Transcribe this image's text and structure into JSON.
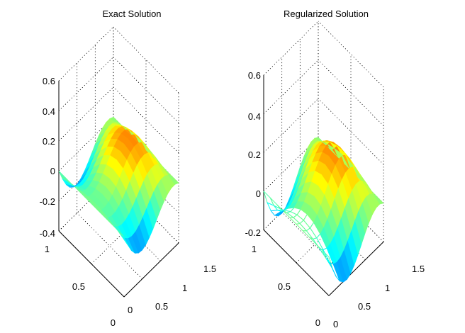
{
  "chart_data": [
    {
      "type": "surface",
      "title": "Exact Solution",
      "xlabel": "",
      "ylabel": "",
      "zlabel": "",
      "x_ticks": [
        "0",
        "0.5",
        "1",
        "1.5"
      ],
      "y_ticks": [
        "0",
        "0.5",
        "1"
      ],
      "z_ticks": [
        "0.6",
        "0.4",
        "0.2",
        "0",
        "-0.2",
        "-0.4"
      ],
      "xlim": [
        0,
        1.5
      ],
      "ylim": [
        0,
        1
      ],
      "zlim": [
        -0.4,
        0.6
      ],
      "colormap": "jet",
      "grid": true,
      "surface_function": "sin(pi*x/1.5)*(0.30*sin(pi*y) + 0.34*x - 0.41)",
      "grid_size": [
        16,
        11
      ]
    },
    {
      "type": "surface",
      "title": "Regularized Solution",
      "xlabel": "",
      "ylabel": "",
      "zlabel": "",
      "x_ticks": [
        "0",
        "0.5",
        "1",
        "1.5"
      ],
      "y_ticks": [
        "0",
        "0.5",
        "1"
      ],
      "z_ticks": [
        "0.6",
        "0.4",
        "0.2",
        "0",
        "-0.2"
      ],
      "xlim": [
        0,
        1.5
      ],
      "ylim": [
        0,
        1
      ],
      "zlim": [
        -0.2,
        0.6
      ],
      "colormap": "jet",
      "grid": true,
      "surface_function": "sin(pi*x/1.5)*(0.30*sin(pi*y) + 0.34*x - 0.41)",
      "grid_size": [
        16,
        11
      ],
      "unfilled_region": "x < 0.3"
    }
  ]
}
